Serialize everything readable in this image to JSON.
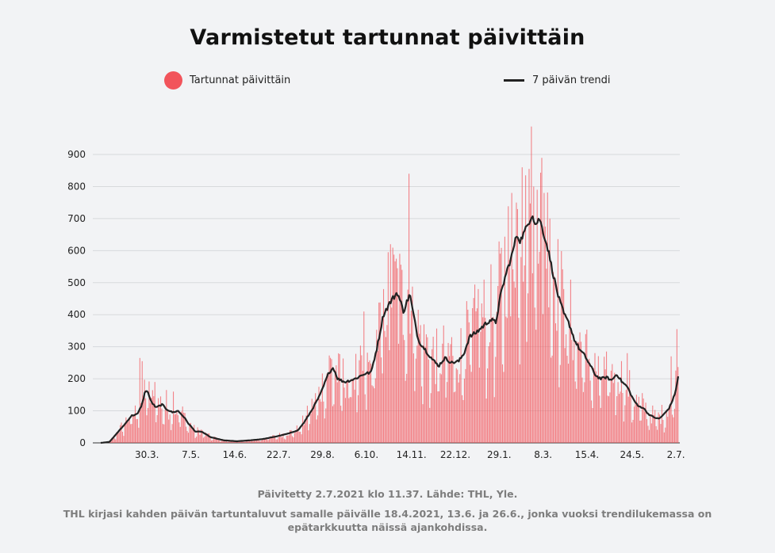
{
  "chart_data": {
    "type": "bar",
    "title": "Varmistetut tartunnat päivittäin",
    "legend": {
      "bars_label": "Tartunnat päivittäin",
      "line_label": "7 päivän trendi"
    },
    "y_ticks": [
      "0",
      "100",
      "200",
      "300",
      "400",
      "500",
      "600",
      "700",
      "800",
      "900"
    ],
    "ylim": [
      0,
      900
    ],
    "x_tick_labels": [
      "30.3.",
      "7.5.",
      "14.6.",
      "22.7.",
      "29.8.",
      "6.10.",
      "14.11.",
      "22.12.",
      "29.1.",
      "8.3.",
      "15.4.",
      "24.5.",
      "2.7."
    ],
    "x_tick_days": [
      40,
      78,
      116,
      154,
      192,
      230,
      269,
      307,
      345,
      383,
      421,
      460,
      498
    ],
    "total_days": 500,
    "trend_anchors": [
      [
        0,
        0
      ],
      [
        10,
        3
      ],
      [
        20,
        35
      ],
      [
        28,
        60
      ],
      [
        35,
        85
      ],
      [
        42,
        90
      ],
      [
        47,
        120
      ],
      [
        50,
        155
      ],
      [
        53,
        165
      ],
      [
        57,
        130
      ],
      [
        63,
        110
      ],
      [
        70,
        120
      ],
      [
        75,
        105
      ],
      [
        82,
        95
      ],
      [
        88,
        100
      ],
      [
        95,
        80
      ],
      [
        100,
        60
      ],
      [
        108,
        35
      ],
      [
        115,
        35
      ],
      [
        125,
        18
      ],
      [
        140,
        8
      ],
      [
        155,
        5
      ],
      [
        170,
        8
      ],
      [
        185,
        12
      ],
      [
        200,
        20
      ],
      [
        215,
        30
      ],
      [
        225,
        40
      ],
      [
        232,
        65
      ],
      [
        240,
        100
      ],
      [
        250,
        150
      ],
      [
        260,
        220
      ],
      [
        265,
        235
      ],
      [
        270,
        200
      ],
      [
        278,
        190
      ],
      [
        290,
        200
      ],
      [
        300,
        215
      ],
      [
        308,
        220
      ],
      [
        315,
        300
      ],
      [
        322,
        400
      ],
      [
        330,
        440
      ],
      [
        338,
        470
      ],
      [
        345,
        410
      ],
      [
        352,
        465
      ],
      [
        357,
        390
      ],
      [
        362,
        320
      ],
      [
        370,
        290
      ],
      [
        378,
        260
      ],
      [
        385,
        240
      ],
      [
        392,
        265
      ],
      [
        400,
        250
      ],
      [
        408,
        255
      ],
      [
        414,
        280
      ],
      [
        420,
        330
      ],
      [
        428,
        345
      ],
      [
        436,
        365
      ],
      [
        444,
        385
      ],
      [
        450,
        375
      ],
      [
        456,
        465
      ],
      [
        462,
        530
      ],
      [
        468,
        580
      ],
      [
        474,
        650
      ],
      [
        478,
        630
      ],
      [
        483,
        660
      ],
      [
        488,
        690
      ],
      [
        492,
        715
      ],
      [
        495,
        680
      ],
      [
        500,
        700
      ],
      [
        505,
        650
      ],
      [
        510,
        600
      ],
      [
        516,
        520
      ],
      [
        522,
        450
      ],
      [
        528,
        400
      ],
      [
        534,
        370
      ],
      [
        540,
        320
      ],
      [
        546,
        290
      ],
      [
        552,
        270
      ],
      [
        558,
        240
      ],
      [
        564,
        210
      ],
      [
        570,
        200
      ],
      [
        576,
        205
      ],
      [
        582,
        195
      ],
      [
        588,
        215
      ],
      [
        594,
        190
      ],
      [
        600,
        175
      ],
      [
        606,
        140
      ],
      [
        612,
        115
      ],
      [
        618,
        110
      ],
      [
        624,
        90
      ],
      [
        630,
        80
      ],
      [
        636,
        75
      ],
      [
        642,
        90
      ],
      [
        648,
        110
      ],
      [
        654,
        150
      ],
      [
        658,
        205
      ]
    ],
    "spikes": [
      [
        45,
        265
      ],
      [
        48,
        255
      ],
      [
        62,
        190
      ],
      [
        75,
        165
      ],
      [
        83,
        160
      ],
      [
        300,
        410
      ],
      [
        322,
        480
      ],
      [
        330,
        620
      ],
      [
        338,
        545
      ],
      [
        344,
        540
      ],
      [
        352,
        840
      ],
      [
        368,
        370
      ],
      [
        400,
        330
      ],
      [
        430,
        480
      ],
      [
        468,
        780
      ],
      [
        474,
        750
      ],
      [
        480,
        860
      ],
      [
        484,
        835
      ],
      [
        488,
        855
      ],
      [
        494,
        800
      ],
      [
        498,
        790
      ],
      [
        505,
        780
      ],
      [
        512,
        700
      ],
      [
        528,
        480
      ],
      [
        600,
        280
      ],
      [
        650,
        270
      ],
      [
        657,
        355
      ]
    ]
  },
  "footer": {
    "updated": "Päivitetty 2.7.2021 klo 11.37. Lähde: THL, Yle.",
    "note": "THL kirjasi kahden päivän tartuntaluvut samalle päivälle 18.4.2021, 13.6. ja 26.6., jonka vuoksi trendilukemassa on epätarkkuutta näissä ajankohdissa."
  },
  "colors": {
    "bar": "#f2545b",
    "line": "#222222",
    "grid": "#d7d9dc",
    "background": "#f2f3f5"
  }
}
